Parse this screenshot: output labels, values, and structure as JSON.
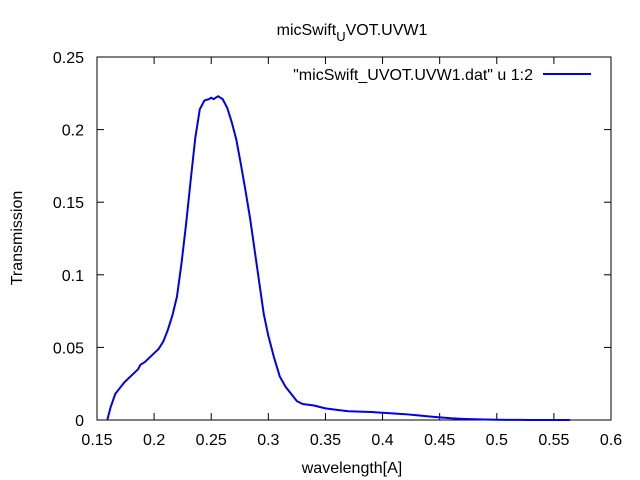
{
  "chart_data": {
    "type": "line",
    "title": {
      "base": "micSwift",
      "subscript": "U",
      "rest": "VOT.UVW1"
    },
    "xlabel": "wavelength[A]",
    "ylabel": "Transmission",
    "xlim": [
      0.15,
      0.6
    ],
    "ylim": [
      0,
      0.25
    ],
    "xticks": [
      "0.15",
      "0.2",
      "0.25",
      "0.3",
      "0.35",
      "0.4",
      "0.45",
      "0.5",
      "0.55",
      "0.6"
    ],
    "yticks": [
      "0",
      "0.05",
      "0.1",
      "0.15",
      "0.2",
      "0.25"
    ],
    "legend_position": "top-right",
    "grid": false,
    "series": [
      {
        "name": "\"micSwift_UVOT.UVW1.dat\" u 1:2",
        "color": "#0000ee",
        "x": [
          0.159,
          0.162,
          0.166,
          0.17,
          0.174,
          0.178,
          0.182,
          0.186,
          0.188,
          0.192,
          0.196,
          0.2,
          0.204,
          0.208,
          0.212,
          0.216,
          0.22,
          0.224,
          0.228,
          0.232,
          0.236,
          0.24,
          0.244,
          0.248,
          0.25,
          0.252,
          0.254,
          0.256,
          0.258,
          0.26,
          0.264,
          0.268,
          0.272,
          0.276,
          0.28,
          0.284,
          0.288,
          0.292,
          0.296,
          0.3,
          0.305,
          0.31,
          0.315,
          0.32,
          0.325,
          0.33,
          0.34,
          0.35,
          0.36,
          0.37,
          0.38,
          0.39,
          0.4,
          0.41,
          0.42,
          0.43,
          0.44,
          0.45,
          0.46,
          0.47,
          0.48,
          0.49,
          0.5,
          0.51,
          0.52,
          0.53,
          0.54,
          0.55,
          0.564
        ],
        "y": [
          0.0,
          0.009,
          0.018,
          0.022,
          0.026,
          0.029,
          0.032,
          0.035,
          0.038,
          0.04,
          0.043,
          0.046,
          0.049,
          0.054,
          0.062,
          0.072,
          0.085,
          0.108,
          0.135,
          0.165,
          0.194,
          0.214,
          0.22,
          0.221,
          0.222,
          0.221,
          0.222,
          0.223,
          0.222,
          0.221,
          0.215,
          0.205,
          0.193,
          0.176,
          0.158,
          0.139,
          0.117,
          0.095,
          0.073,
          0.058,
          0.043,
          0.03,
          0.023,
          0.018,
          0.013,
          0.011,
          0.01,
          0.008,
          0.007,
          0.006,
          0.0058,
          0.0055,
          0.005,
          0.0045,
          0.004,
          0.0033,
          0.0025,
          0.0018,
          0.0012,
          0.0008,
          0.0005,
          0.0003,
          0.0002,
          0.0001,
          0.0001,
          0.0,
          0.0,
          0.0,
          0.0
        ]
      }
    ]
  }
}
